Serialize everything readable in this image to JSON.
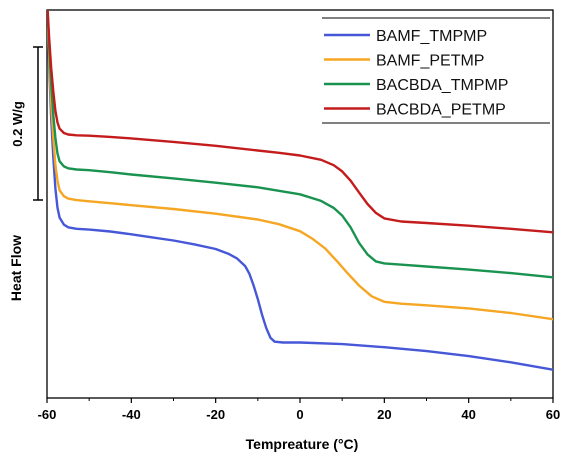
{
  "chart_data": {
    "type": "line",
    "title": "",
    "xlabel": "Tempreature (°C)",
    "ylabel": "Heat Flow",
    "scale_bar_label": "0.2 W/g",
    "xlim": [
      -60,
      60
    ],
    "ylim": [
      0,
      1
    ],
    "x_ticks": [
      -60,
      -40,
      -20,
      0,
      20,
      40,
      60
    ],
    "grid": false,
    "legend_position": "top-right",
    "series": [
      {
        "name": "BAMF_TMPMP",
        "color": "#4657d8",
        "points": [
          [
            -60,
            1.03
          ],
          [
            -59.5,
            0.86
          ],
          [
            -59,
            0.72
          ],
          [
            -58.5,
            0.62
          ],
          [
            -58,
            0.54
          ],
          [
            -57.5,
            0.49
          ],
          [
            -57,
            0.465
          ],
          [
            -56,
            0.447
          ],
          [
            -55,
            0.44
          ],
          [
            -53,
            0.436
          ],
          [
            -50,
            0.434
          ],
          [
            -45,
            0.429
          ],
          [
            -40,
            0.422
          ],
          [
            -35,
            0.414
          ],
          [
            -30,
            0.406
          ],
          [
            -25,
            0.396
          ],
          [
            -20,
            0.384
          ],
          [
            -17,
            0.372
          ],
          [
            -15,
            0.36
          ],
          [
            -13,
            0.34
          ],
          [
            -12,
            0.32
          ],
          [
            -11,
            0.29
          ],
          [
            -10,
            0.255
          ],
          [
            -9,
            0.215
          ],
          [
            -8,
            0.18
          ],
          [
            -7,
            0.155
          ],
          [
            -6,
            0.145
          ],
          [
            -4,
            0.143
          ],
          [
            0,
            0.143
          ],
          [
            10,
            0.139
          ],
          [
            20,
            0.131
          ],
          [
            30,
            0.121
          ],
          [
            40,
            0.108
          ],
          [
            50,
            0.092
          ],
          [
            60,
            0.073
          ]
        ]
      },
      {
        "name": "BAMF_PETMP",
        "color": "#f5a623",
        "points": [
          [
            -60,
            1.03
          ],
          [
            -59.5,
            0.88
          ],
          [
            -59,
            0.76
          ],
          [
            -58.5,
            0.67
          ],
          [
            -58,
            0.6
          ],
          [
            -57.5,
            0.56
          ],
          [
            -57,
            0.535
          ],
          [
            -56,
            0.52
          ],
          [
            -55,
            0.514
          ],
          [
            -53,
            0.51
          ],
          [
            -50,
            0.507
          ],
          [
            -45,
            0.502
          ],
          [
            -40,
            0.497
          ],
          [
            -30,
            0.487
          ],
          [
            -20,
            0.475
          ],
          [
            -10,
            0.46
          ],
          [
            -5,
            0.448
          ],
          [
            0,
            0.43
          ],
          [
            3,
            0.41
          ],
          [
            6,
            0.385
          ],
          [
            9,
            0.35
          ],
          [
            11,
            0.325
          ],
          [
            14,
            0.29
          ],
          [
            17,
            0.262
          ],
          [
            20,
            0.248
          ],
          [
            24,
            0.243
          ],
          [
            30,
            0.239
          ],
          [
            40,
            0.231
          ],
          [
            50,
            0.219
          ],
          [
            60,
            0.203
          ]
        ]
      },
      {
        "name": "BACBDA_TMPMP",
        "color": "#1a9350",
        "points": [
          [
            -60,
            1.03
          ],
          [
            -59.5,
            0.91
          ],
          [
            -59,
            0.81
          ],
          [
            -58.5,
            0.73
          ],
          [
            -58,
            0.67
          ],
          [
            -57.5,
            0.63
          ],
          [
            -57,
            0.61
          ],
          [
            -56,
            0.597
          ],
          [
            -55,
            0.592
          ],
          [
            -53,
            0.589
          ],
          [
            -50,
            0.587
          ],
          [
            -45,
            0.582
          ],
          [
            -40,
            0.576
          ],
          [
            -30,
            0.566
          ],
          [
            -20,
            0.555
          ],
          [
            -10,
            0.543
          ],
          [
            0,
            0.525
          ],
          [
            5,
            0.508
          ],
          [
            8,
            0.49
          ],
          [
            10,
            0.47
          ],
          [
            12,
            0.44
          ],
          [
            14,
            0.4
          ],
          [
            16,
            0.37
          ],
          [
            18,
            0.352
          ],
          [
            20,
            0.347
          ],
          [
            25,
            0.343
          ],
          [
            30,
            0.339
          ],
          [
            40,
            0.331
          ],
          [
            50,
            0.322
          ],
          [
            60,
            0.311
          ]
        ]
      },
      {
        "name": "BACBDA_PETMP",
        "color": "#c41c1c",
        "points": [
          [
            -60,
            1.03
          ],
          [
            -59.5,
            0.93
          ],
          [
            -59,
            0.85
          ],
          [
            -58.5,
            0.79
          ],
          [
            -58,
            0.74
          ],
          [
            -57.5,
            0.71
          ],
          [
            -57,
            0.694
          ],
          [
            -56,
            0.683
          ],
          [
            -55,
            0.679
          ],
          [
            -53,
            0.677
          ],
          [
            -50,
            0.676
          ],
          [
            -45,
            0.673
          ],
          [
            -40,
            0.669
          ],
          [
            -30,
            0.66
          ],
          [
            -20,
            0.65
          ],
          [
            -10,
            0.638
          ],
          [
            -5,
            0.632
          ],
          [
            0,
            0.625
          ],
          [
            5,
            0.614
          ],
          [
            8,
            0.6
          ],
          [
            10,
            0.584
          ],
          [
            12,
            0.56
          ],
          [
            14,
            0.53
          ],
          [
            16,
            0.5
          ],
          [
            18,
            0.477
          ],
          [
            20,
            0.463
          ],
          [
            24,
            0.455
          ],
          [
            30,
            0.451
          ],
          [
            40,
            0.444
          ],
          [
            50,
            0.436
          ],
          [
            60,
            0.427
          ]
        ]
      }
    ]
  }
}
